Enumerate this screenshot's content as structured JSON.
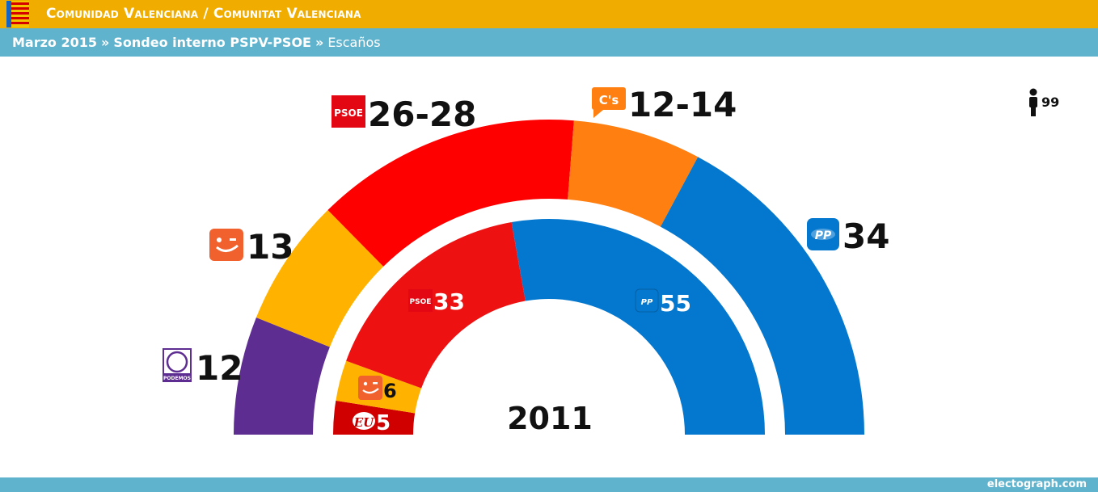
{
  "header": {
    "title": "Comunidad Valenciana / Comunitat Valenciana",
    "subtitle_date": "Marzo 2015",
    "subtitle_source": "Sondeo interno PSPV-PSOE",
    "subtitle_separator": "»",
    "subtitle_metric": "Escaños"
  },
  "footer": {
    "credit": "electograph.com"
  },
  "colors": {
    "header_bar": "#f0ad00",
    "subheader_bar": "#60b3cd",
    "psoe": "#ff0000",
    "psoe_2011": "#ee1111",
    "pp": "#0478ce",
    "cs": "#ff7f11",
    "compromis": "#ffb300",
    "podemos": "#5e2d91",
    "eu": "#d10000"
  },
  "chart_data": {
    "type": "parliament-hemicycle",
    "total_seats": 99,
    "total_seats_label": "99",
    "outer_ring": {
      "label": "Marzo 2015",
      "series": [
        {
          "party": "Podemos",
          "logo": "PODEMOS",
          "value": 12,
          "label": "12",
          "color": "#5e2d91"
        },
        {
          "party": "Compromís",
          "logo": "compromis-logo",
          "value": 13,
          "label": "13",
          "color": "#ffb300"
        },
        {
          "party": "PSOE",
          "logo": "PSOE",
          "value": 27,
          "label": "26-28",
          "color": "#ff0000"
        },
        {
          "party": "C's",
          "logo": "C's",
          "value": 13,
          "label": "12-14",
          "color": "#ff7f11"
        },
        {
          "party": "PP",
          "logo": "PP",
          "value": 34,
          "label": "34",
          "color": "#0478ce"
        }
      ]
    },
    "inner_ring": {
      "label": "2011",
      "series": [
        {
          "party": "EU",
          "logo": "EU",
          "value": 5,
          "label": "5",
          "color": "#d10000"
        },
        {
          "party": "Compromís",
          "logo": "compromis-logo",
          "value": 6,
          "label": "6",
          "color": "#ffb300"
        },
        {
          "party": "PSOE",
          "logo": "PSOE",
          "value": 33,
          "label": "33",
          "color": "#ee1111"
        },
        {
          "party": "PP",
          "logo": "PP",
          "value": 55,
          "label": "55",
          "color": "#0478ce"
        }
      ]
    }
  }
}
